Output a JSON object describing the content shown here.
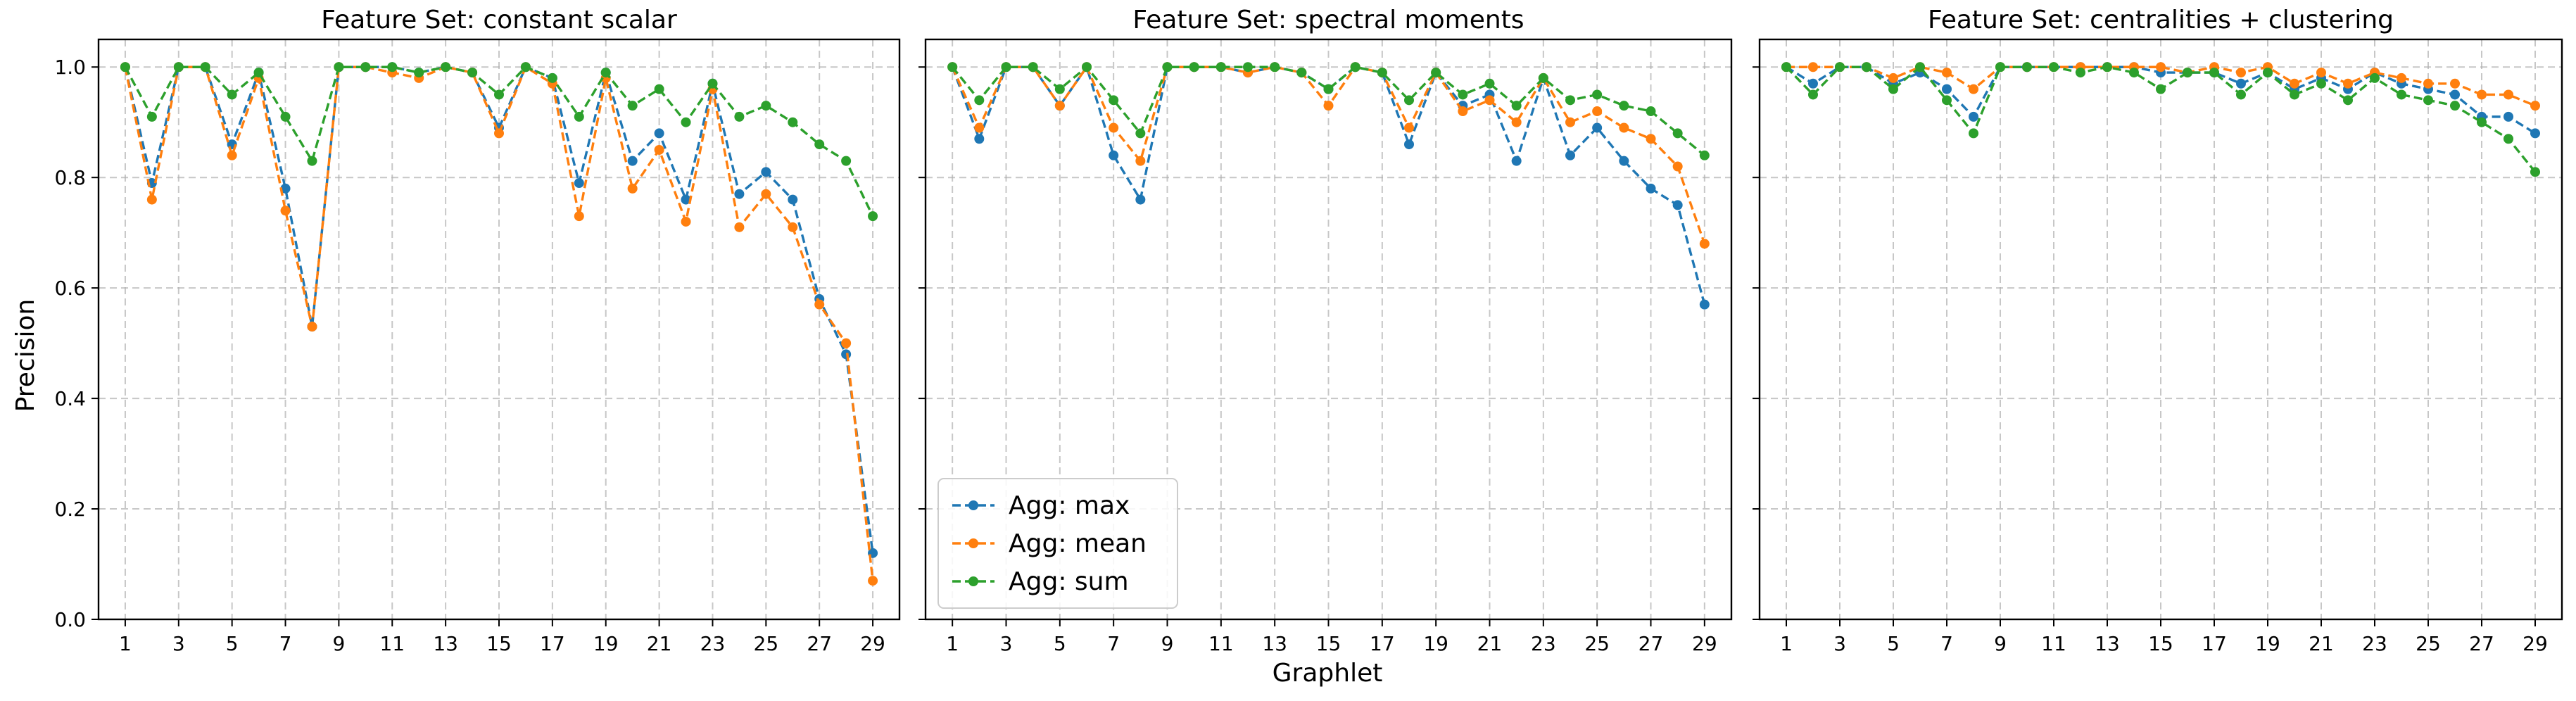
{
  "chart_data": {
    "type": "line",
    "xlabel": "Graphlet",
    "ylabel": "Precision",
    "ylim": [
      0,
      1.05
    ],
    "xlim": [
      0,
      30
    ],
    "yticks": [
      0.0,
      0.2,
      0.4,
      0.6,
      0.8,
      1.0
    ],
    "xticks": [
      1,
      3,
      5,
      7,
      9,
      11,
      13,
      15,
      17,
      19,
      21,
      23,
      25,
      27,
      29
    ],
    "grid": true,
    "legend_location": "lower-left",
    "legend_panel": 1,
    "sharey": true,
    "x": [
      1,
      2,
      3,
      4,
      5,
      6,
      7,
      8,
      9,
      10,
      11,
      12,
      13,
      14,
      15,
      16,
      17,
      18,
      19,
      20,
      21,
      22,
      23,
      24,
      25,
      26,
      27,
      28,
      29
    ],
    "series_styles": [
      {
        "name": "Agg: max",
        "color": "#1f77b4"
      },
      {
        "name": "Agg: mean",
        "color": "#ff7f0e"
      },
      {
        "name": "Agg: sum",
        "color": "#2ca02c"
      }
    ],
    "panels": [
      {
        "title": "Feature Set: constant scalar",
        "series": [
          {
            "name": "Agg: max",
            "values": [
              1.0,
              0.79,
              1.0,
              1.0,
              0.86,
              0.99,
              0.78,
              0.53,
              1.0,
              1.0,
              1.0,
              0.99,
              1.0,
              0.99,
              0.89,
              1.0,
              0.98,
              0.79,
              0.99,
              0.83,
              0.88,
              0.76,
              0.97,
              0.77,
              0.81,
              0.76,
              0.58,
              0.48,
              0.12
            ]
          },
          {
            "name": "Agg: mean",
            "values": [
              1.0,
              0.76,
              1.0,
              1.0,
              0.84,
              0.98,
              0.74,
              0.53,
              1.0,
              1.0,
              0.99,
              0.98,
              1.0,
              0.99,
              0.88,
              1.0,
              0.97,
              0.73,
              0.98,
              0.78,
              0.85,
              0.72,
              0.96,
              0.71,
              0.77,
              0.71,
              0.57,
              0.5,
              0.07
            ]
          },
          {
            "name": "Agg: sum",
            "values": [
              1.0,
              0.91,
              1.0,
              1.0,
              0.95,
              0.99,
              0.91,
              0.83,
              1.0,
              1.0,
              1.0,
              0.99,
              1.0,
              0.99,
              0.95,
              1.0,
              0.98,
              0.91,
              0.99,
              0.93,
              0.96,
              0.9,
              0.97,
              0.91,
              0.93,
              0.9,
              0.86,
              0.83,
              0.73
            ]
          }
        ]
      },
      {
        "title": "Feature Set: spectral moments",
        "series": [
          {
            "name": "Agg: max",
            "values": [
              1.0,
              0.87,
              1.0,
              1.0,
              0.93,
              1.0,
              0.84,
              0.76,
              1.0,
              1.0,
              1.0,
              0.99,
              1.0,
              0.99,
              0.96,
              1.0,
              0.99,
              0.86,
              0.99,
              0.93,
              0.95,
              0.83,
              0.98,
              0.84,
              0.89,
              0.83,
              0.78,
              0.75,
              0.57
            ]
          },
          {
            "name": "Agg: mean",
            "values": [
              1.0,
              0.89,
              1.0,
              1.0,
              0.93,
              1.0,
              0.89,
              0.83,
              1.0,
              1.0,
              1.0,
              0.99,
              1.0,
              0.99,
              0.93,
              1.0,
              0.99,
              0.89,
              0.99,
              0.92,
              0.94,
              0.9,
              0.98,
              0.9,
              0.92,
              0.89,
              0.87,
              0.82,
              0.68
            ]
          },
          {
            "name": "Agg: sum",
            "values": [
              1.0,
              0.94,
              1.0,
              1.0,
              0.96,
              1.0,
              0.94,
              0.88,
              1.0,
              1.0,
              1.0,
              1.0,
              1.0,
              0.99,
              0.96,
              1.0,
              0.99,
              0.94,
              0.99,
              0.95,
              0.97,
              0.93,
              0.98,
              0.94,
              0.95,
              0.93,
              0.92,
              0.88,
              0.84
            ]
          }
        ]
      },
      {
        "title": "Feature Set: centralities + clustering",
        "series": [
          {
            "name": "Agg: max",
            "values": [
              1.0,
              0.97,
              1.0,
              1.0,
              0.97,
              0.99,
              0.96,
              0.91,
              1.0,
              1.0,
              1.0,
              1.0,
              1.0,
              1.0,
              0.99,
              0.99,
              0.99,
              0.97,
              0.99,
              0.96,
              0.98,
              0.96,
              0.99,
              0.97,
              0.96,
              0.95,
              0.91,
              0.91,
              0.88
            ]
          },
          {
            "name": "Agg: mean",
            "values": [
              1.0,
              1.0,
              1.0,
              1.0,
              0.98,
              1.0,
              0.99,
              0.96,
              1.0,
              1.0,
              1.0,
              1.0,
              1.0,
              1.0,
              1.0,
              0.99,
              1.0,
              0.99,
              1.0,
              0.97,
              0.99,
              0.97,
              0.99,
              0.98,
              0.97,
              0.97,
              0.95,
              0.95,
              0.93
            ]
          },
          {
            "name": "Agg: sum",
            "values": [
              1.0,
              0.95,
              1.0,
              1.0,
              0.96,
              1.0,
              0.94,
              0.88,
              1.0,
              1.0,
              1.0,
              0.99,
              1.0,
              0.99,
              0.96,
              0.99,
              0.99,
              0.95,
              0.99,
              0.95,
              0.97,
              0.94,
              0.98,
              0.95,
              0.94,
              0.93,
              0.9,
              0.87,
              0.81
            ]
          }
        ]
      }
    ]
  }
}
